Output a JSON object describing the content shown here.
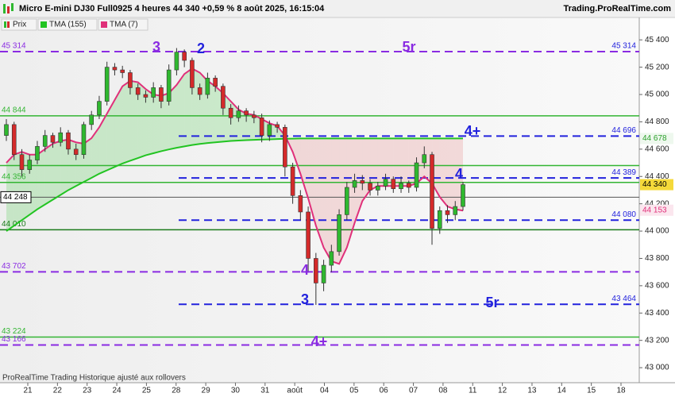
{
  "chart_data": {
    "type": "candlestick",
    "title": "Micro E-mini DJ30 Full0925 4 heures 44 340 +0,59 % 8 août 2025, 16:15:04",
    "source": "Trading.ProRealTime.com",
    "footer": "ProRealTime Trading  Historique ajusté aux rollovers",
    "ylim": [
      42890,
      45564
    ],
    "yticks": [
      {
        "value": 43000,
        "label": "43 000"
      },
      {
        "value": 43200,
        "label": "43 200"
      },
      {
        "value": 43400,
        "label": "43 400"
      },
      {
        "value": 43600,
        "label": "43 600"
      },
      {
        "value": 43800,
        "label": "43 800"
      },
      {
        "value": 44000,
        "label": "44 000"
      },
      {
        "value": 44200,
        "label": "44 200"
      },
      {
        "value": 44400,
        "label": "44 400"
      },
      {
        "value": 44600,
        "label": "44 600"
      },
      {
        "value": 44800,
        "label": "44 800"
      },
      {
        "value": 45000,
        "label": "45 000"
      },
      {
        "value": 45200,
        "label": "45 200"
      },
      {
        "value": 45400,
        "label": "45 400"
      }
    ],
    "x_labels": [
      "21",
      "22",
      "23",
      "24",
      "25",
      "28",
      "29",
      "30",
      "31",
      "août",
      "04",
      "05",
      "06",
      "07",
      "08",
      "11",
      "12",
      "13",
      "14",
      "15",
      "18"
    ],
    "series": [
      {
        "name": "Prix",
        "up_color": "#2fb82f",
        "down_color": "#d42a2a",
        "open": [
          44700,
          44780,
          44560,
          44450,
          44520,
          44620,
          44700,
          44650,
          44720,
          44600,
          44560,
          44780,
          44850,
          44950,
          45200,
          45180,
          45160,
          45050,
          45000,
          44980,
          45050,
          44950,
          45180,
          45310,
          45250,
          45050,
          45000,
          45120,
          45060,
          44900,
          44830,
          44880,
          44850,
          44830,
          44700,
          44780,
          44760,
          44470,
          44260,
          44140,
          43800,
          43620,
          43750,
          43850,
          44120,
          44320,
          44370,
          44350,
          44300,
          44330,
          44380,
          44310,
          44350,
          44320,
          44500,
          44560,
          44020,
          44150,
          44120,
          44180
        ],
        "high": [
          44820,
          44800,
          44600,
          44560,
          44660,
          44740,
          44720,
          44760,
          44740,
          44640,
          44800,
          44880,
          44990,
          45240,
          45230,
          45210,
          45180,
          45080,
          45030,
          45090,
          45070,
          45220,
          45340,
          45330,
          45270,
          45080,
          45160,
          45140,
          45080,
          44930,
          44920,
          44900,
          44880,
          44860,
          44810,
          44800,
          44780,
          44500,
          44300,
          44180,
          43840,
          43790,
          43900,
          44160,
          44360,
          44420,
          44410,
          44380,
          44360,
          44420,
          44400,
          44400,
          44370,
          44540,
          44620,
          44580,
          44180,
          44190,
          44220,
          44360
        ],
        "low": [
          44660,
          44520,
          44400,
          44420,
          44490,
          44580,
          44610,
          44620,
          44560,
          44520,
          44530,
          44740,
          44820,
          44920,
          45140,
          45120,
          45000,
          44960,
          44940,
          44940,
          44900,
          44920,
          45140,
          45200,
          45000,
          44960,
          44970,
          45020,
          44850,
          44780,
          44800,
          44800,
          44790,
          44650,
          44660,
          44720,
          44400,
          44200,
          44080,
          43700,
          43460,
          43560,
          43700,
          43820,
          44080,
          44280,
          44300,
          44260,
          44260,
          44300,
          44280,
          44280,
          44280,
          44290,
          44460,
          43900,
          43980,
          44060,
          44080,
          44150
        ],
        "close": [
          44780,
          44560,
          44450,
          44520,
          44620,
          44700,
          44650,
          44720,
          44600,
          44560,
          44780,
          44850,
          44950,
          45200,
          45180,
          45160,
          45050,
          45000,
          44980,
          45050,
          44950,
          45180,
          45310,
          45250,
          45050,
          45000,
          45120,
          45060,
          44900,
          44830,
          44880,
          44850,
          44830,
          44700,
          44780,
          44760,
          44470,
          44260,
          44140,
          43800,
          43620,
          43750,
          43850,
          44120,
          44320,
          44370,
          44350,
          44300,
          44330,
          44380,
          44310,
          44350,
          44320,
          44500,
          44560,
          44020,
          44150,
          44120,
          44180,
          44340
        ]
      },
      {
        "name": "TMA (155)",
        "color": "#22c422",
        "values": [
          44000,
          44040,
          44080,
          44120,
          44160,
          44195,
          44230,
          44265,
          44300,
          44330,
          44360,
          44390,
          44420,
          44445,
          44470,
          44495,
          44515,
          44535,
          44555,
          44570,
          44585,
          44598,
          44610,
          44620,
          44630,
          44638,
          44645,
          44650,
          44655,
          44660,
          44663,
          44666,
          44668,
          44670,
          44672,
          44674,
          44676,
          44677,
          44678,
          44678,
          44678,
          44678,
          44678,
          44678,
          44678,
          44678,
          44678,
          44678,
          44678,
          44678,
          44678,
          44678,
          44678,
          44678,
          44678,
          44678,
          44678,
          44678,
          44678,
          44678
        ]
      },
      {
        "name": "TMA (7)",
        "color": "#e0307a",
        "values": [
          44500,
          44560,
          44580,
          44560,
          44560,
          44600,
          44640,
          44660,
          44670,
          44650,
          44640,
          44680,
          44760,
          44860,
          44960,
          45060,
          45100,
          45090,
          45040,
          45000,
          44990,
          45010,
          45070,
          45150,
          45190,
          45160,
          45100,
          45060,
          45010,
          44950,
          44890,
          44860,
          44850,
          44820,
          44790,
          44770,
          44700,
          44580,
          44420,
          44240,
          44040,
          43880,
          43780,
          43760,
          43880,
          44060,
          44220,
          44300,
          44330,
          44330,
          44330,
          44330,
          44330,
          44350,
          44400,
          44350,
          44250,
          44180,
          44160,
          44150
        ]
      }
    ],
    "levels": [
      {
        "value": 45314,
        "label": "45 314",
        "color": "#8a2be2",
        "style": "dash",
        "span": "full",
        "label_side": "both"
      },
      {
        "value": 44844,
        "label": "44 844",
        "color": "#33b533",
        "style": "solid",
        "span": "full",
        "label_side": "left"
      },
      {
        "value": 44696,
        "label": "44 696",
        "color": "#2222dd",
        "style": "dash",
        "span": "right",
        "label_side": "right"
      },
      {
        "value": 44480,
        "color": "#33b533",
        "style": "solid",
        "span": "full"
      },
      {
        "value": 44389,
        "label": "44 389",
        "color": "#2222dd",
        "style": "dash",
        "span": "right",
        "label_side": "right"
      },
      {
        "value": 44356,
        "label": "44 356",
        "color": "#33b533",
        "style": "solid",
        "span": "full",
        "label_side": "left"
      },
      {
        "value": 44080,
        "label": "44 080",
        "color": "#2222dd",
        "style": "dash",
        "span": "right",
        "label_side": "right"
      },
      {
        "value": 44010,
        "label": "44 010",
        "color": "#1a7a1a",
        "style": "solid",
        "span": "full",
        "label_side": "left"
      },
      {
        "value": 43702,
        "label": "43 702",
        "color": "#8a2be2",
        "style": "dash",
        "span": "full",
        "label_side": "left"
      },
      {
        "value": 43464,
        "label": "43 464",
        "color": "#2222dd",
        "style": "dash",
        "span": "right",
        "label_side": "right"
      },
      {
        "value": 43224,
        "label": "43 224",
        "color": "#33b533",
        "style": "solid",
        "span": "full",
        "label_side": "left"
      },
      {
        "value": 43166,
        "label": "43 166",
        "color": "#8a2be2",
        "style": "dash",
        "span": "full",
        "label_side": "left"
      }
    ],
    "crosshair": {
      "value": 44248,
      "label": "44 248"
    },
    "price_tags": [
      {
        "value": 44678,
        "label": "44 678",
        "color": "#2ca02c",
        "bg": "#eef8ee"
      },
      {
        "value": 44340,
        "label": "44 340",
        "color": "#000000",
        "bg": "#f5d93a"
      },
      {
        "value": 44153,
        "label": "44 153",
        "color": "#e0307a",
        "bg": "#fbe6ee"
      }
    ],
    "annotations": [
      {
        "text": "3",
        "color": "#8a2be2"
      },
      {
        "text": "2",
        "color": "#2222dd"
      },
      {
        "text": "5r",
        "color": "#8a2be2"
      },
      {
        "text": "4+",
        "color": "#2222dd"
      },
      {
        "text": "4",
        "color": "#2222dd"
      },
      {
        "text": "4",
        "color": "#8a2be2"
      },
      {
        "text": "3",
        "color": "#2222dd"
      },
      {
        "text": "5r",
        "color": "#2222dd"
      },
      {
        "text": "4+",
        "color": "#8a2be2"
      }
    ]
  }
}
